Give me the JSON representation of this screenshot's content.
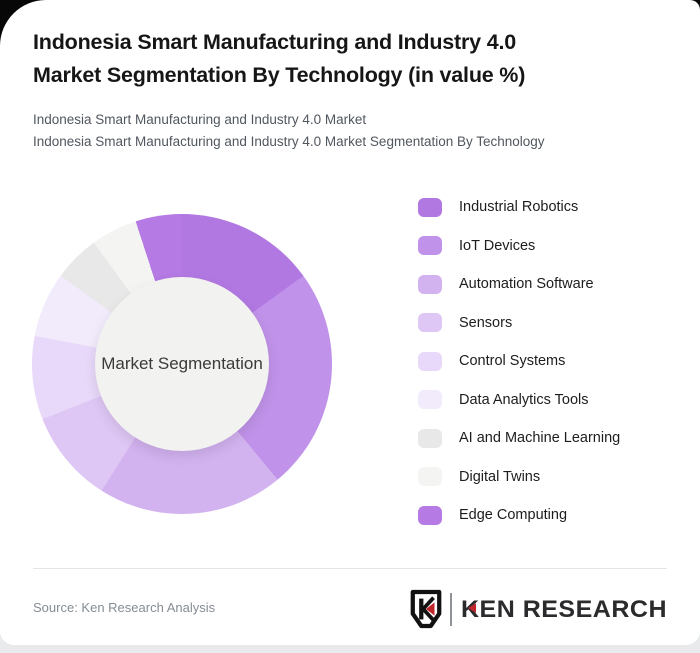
{
  "page": {
    "title_line1": "Indonesia Smart Manufacturing and Industry 4.0",
    "title_line2": "Market Segmentation By Technology (in value %)",
    "subtitle_line1": "Indonesia Smart Manufacturing and Industry 4.0 Market",
    "subtitle_line2": "Indonesia Smart Manufacturing and Industry 4.0 Market Segmentation By Technology"
  },
  "chart_data": {
    "type": "pie",
    "subtype": "donut",
    "title": "Indonesia Smart Manufacturing and Industry 4.0 Market Segmentation By Technology (in value %)",
    "center_label": "Market Segmentation",
    "legend_position": "right",
    "start_angle_deg": 0,
    "values_estimated_from_arc_angles": true,
    "labels": [
      "Industrial Robotics",
      "IoT Devices",
      "Automation Software",
      "Sensors",
      "Control Systems",
      "Data Analytics Tools",
      "AI and Machine Learning",
      "Digital Twins",
      "Edge Computing"
    ],
    "values": [
      15,
      24,
      20,
      10,
      9,
      7,
      5,
      5,
      5
    ],
    "unit": "%",
    "colors": [
      "#b278e2",
      "#c092e9",
      "#d3b2f0",
      "#dfc7f5",
      "#e8d8f9",
      "#f2ebfc",
      "#e9e8e8",
      "#f4f4f2",
      "#b57ae3"
    ],
    "hole_color": "#f2f2f0"
  },
  "footer": {
    "source": "Source: Ken Research Analysis",
    "logo_monogram": "K",
    "logo_text": "KEN RESEARCH",
    "logo_red": "#c0272d",
    "logo_text_color": "#2b2b2d"
  }
}
